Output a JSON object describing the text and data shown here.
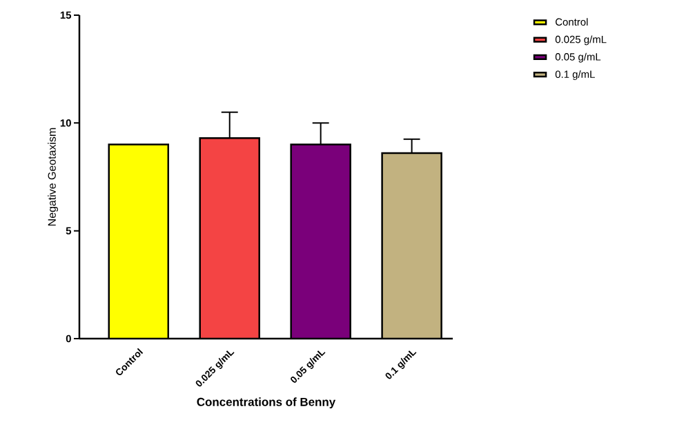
{
  "chart_data": {
    "type": "bar",
    "xlabel": "Concentrations of Benny",
    "ylabel": "Negative Geotaxism",
    "categories": [
      "Control",
      "0.025 g/mL",
      "0.05 g/mL",
      "0.1 g/mL"
    ],
    "series": [
      {
        "name": "Control",
        "color": "#ffff00",
        "values": [
          9.0,
          null,
          null,
          null
        ]
      },
      {
        "name": "0.025 g/mL",
        "color": "#f44444",
        "values": [
          null,
          9.3,
          null,
          null
        ],
        "errors": [
          null,
          1.2,
          null,
          null
        ]
      },
      {
        "name": "0.05 g/mL",
        "color": "#7a007a",
        "values": [
          null,
          null,
          9.0,
          null
        ],
        "errors": [
          null,
          null,
          1.0,
          null
        ]
      },
      {
        "name": "0.1 g/mL",
        "color": "#c2b280",
        "values": [
          null,
          null,
          null,
          8.6
        ],
        "errors": [
          null,
          null,
          null,
          0.65
        ]
      }
    ],
    "ylim": [
      0,
      15
    ],
    "yticks": [
      0,
      5,
      10,
      15
    ],
    "legend": "top right"
  }
}
